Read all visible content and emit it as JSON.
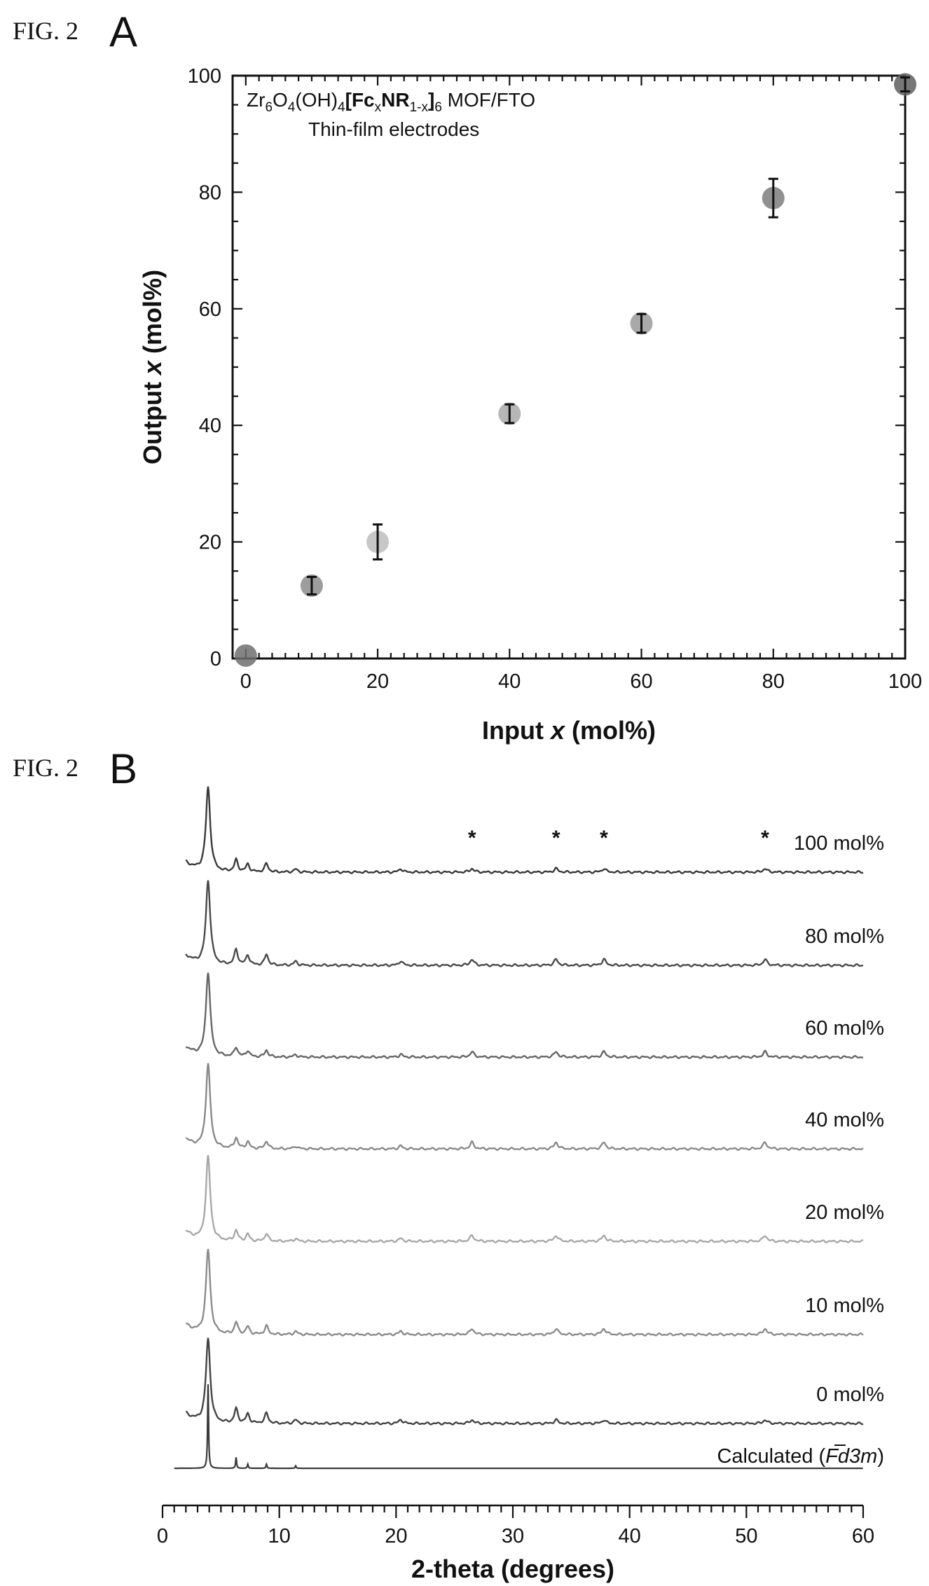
{
  "figure_a": {
    "fig_label": "FIG. 2",
    "panel_letter": "A",
    "annotation": {
      "formula": {
        "zr": "Zr",
        "s6a": "6",
        "o": "O",
        "s4a": "4",
        "oh": "(OH)",
        "s4b": "4",
        "lb": "[",
        "fc": "Fc",
        "sx": "x",
        "nr": "NR",
        "s1x": "1-x",
        "rb": "]",
        "s6b": "6",
        "tail": " MOF/FTO"
      },
      "line2": "Thin-film electrodes"
    }
  },
  "figure_b": {
    "fig_label": "FIG. 2",
    "panel_letter": "B",
    "calc_label": {
      "prefix": "Calculated (",
      "space_group": "Fd3m",
      "bar_digit": "3",
      "suffix": ")"
    }
  },
  "chart_data": [
    {
      "type": "scatter",
      "title": "",
      "xlabel": "Input x (mol%)",
      "ylabel": "Output x (mol%)",
      "xlabel_parts": [
        "Input ",
        "x",
        " (mol%)"
      ],
      "ylabel_parts": [
        "Output ",
        "x",
        " (mol%)"
      ],
      "xlim": [
        -2,
        100
      ],
      "ylim": [
        0,
        100
      ],
      "x_ticks": [
        0,
        20,
        40,
        60,
        80,
        100
      ],
      "y_ticks": [
        0,
        20,
        40,
        60,
        80,
        100
      ],
      "grid": false,
      "points": [
        {
          "x": 0,
          "y": 0.5,
          "err": 0,
          "color": "#6e6e6e"
        },
        {
          "x": 10,
          "y": 12.5,
          "err": 1.5,
          "color": "#8c8c8c"
        },
        {
          "x": 20,
          "y": 20,
          "err": 3,
          "color": "#bdbdbd"
        },
        {
          "x": 40,
          "y": 42,
          "err": 1.6,
          "color": "#a9a9a9"
        },
        {
          "x": 60,
          "y": 57.5,
          "err": 1.6,
          "color": "#9a9a9a"
        },
        {
          "x": 80,
          "y": 79,
          "err": 3.3,
          "color": "#7d7d7d"
        },
        {
          "x": 100,
          "y": 98.5,
          "err": 1.2,
          "color": "#5f5f5f"
        }
      ]
    },
    {
      "type": "line",
      "title": "",
      "xlabel": "2-theta (degrees)",
      "ylabel": "",
      "xlim": [
        0,
        60
      ],
      "x_ticks": [
        0,
        10,
        20,
        30,
        40,
        50,
        60
      ],
      "grid": false,
      "asterisk_positions_2theta": [
        26.5,
        33.7,
        37.8,
        51.6
      ],
      "substrate_peaks_2theta": [
        26.5,
        33.7,
        37.8,
        51.6
      ],
      "series": [
        {
          "name": "100 mol%",
          "color": "#3a3a3a",
          "main_peak_height": 1.0,
          "minor_scale": 1.0,
          "substrate_scale": 0.6
        },
        {
          "name": "80 mol%",
          "color": "#4a4a4a",
          "main_peak_height": 1.0,
          "minor_scale": 1.3,
          "substrate_scale": 1.0
        },
        {
          "name": "60 mol%",
          "color": "#666666",
          "main_peak_height": 1.0,
          "minor_scale": 0.8,
          "substrate_scale": 0.9
        },
        {
          "name": "40 mol%",
          "color": "#8a8a8a",
          "main_peak_height": 1.0,
          "minor_scale": 0.9,
          "substrate_scale": 1.1
        },
        {
          "name": "20 mol%",
          "color": "#a8a8a8",
          "main_peak_height": 1.0,
          "minor_scale": 0.9,
          "substrate_scale": 1.0
        },
        {
          "name": "10 mol%",
          "color": "#8c8c8c",
          "main_peak_height": 1.0,
          "minor_scale": 1.0,
          "substrate_scale": 1.0
        },
        {
          "name": "0 mol%",
          "color": "#444444",
          "main_peak_height": 1.0,
          "minor_scale": 1.2,
          "substrate_scale": 0.6
        }
      ],
      "calculated": {
        "peaks": [
          {
            "x": 3.9,
            "h": 1.0
          },
          {
            "x": 6.3,
            "h": 0.13
          },
          {
            "x": 7.3,
            "h": 0.05
          },
          {
            "x": 8.9,
            "h": 0.05
          },
          {
            "x": 11.4,
            "h": 0.03
          }
        ]
      },
      "mof_peaks": [
        {
          "x": 3.9,
          "h": 1.0
        },
        {
          "x": 6.3,
          "h": 0.14
        },
        {
          "x": 7.3,
          "h": 0.09
        },
        {
          "x": 8.9,
          "h": 0.1
        },
        {
          "x": 11.4,
          "h": 0.035
        },
        {
          "x": 20.4,
          "h": 0.04
        }
      ]
    }
  ]
}
